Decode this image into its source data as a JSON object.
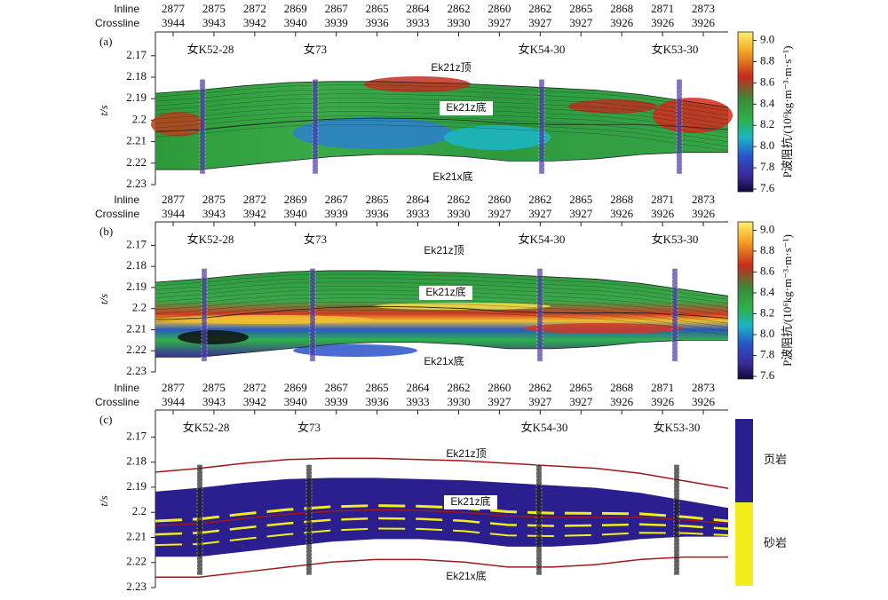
{
  "chart_data": [
    {
      "type": "section",
      "panel_label": "(a)",
      "inline": {
        "label": "Inline",
        "values": [
          "2877",
          "2875",
          "2872",
          "2869",
          "2867",
          "2865",
          "2864",
          "2862",
          "2860",
          "2862",
          "2865",
          "2868",
          "2871",
          "2873"
        ]
      },
      "crossline": {
        "label": "Crossline",
        "values": [
          "3944",
          "3943",
          "3942",
          "3940",
          "3939",
          "3936",
          "3933",
          "3930",
          "3927",
          "3927",
          "3927",
          "3926",
          "3926",
          "3926"
        ]
      },
      "y_label": "t/s",
      "ylim": [
        2.161,
        2.23
      ],
      "yticks": [
        2.17,
        2.18,
        2.19,
        2.2,
        2.21,
        2.22,
        2.23
      ],
      "invert_y": true,
      "wells": [
        "女K52-28",
        "女73",
        "女K54-30",
        "女K53-30"
      ],
      "horizons": [
        "Ek21z顶",
        "Ek21z底",
        "Ek21x底"
      ],
      "colorbar": {
        "label": "P波阻抗/(10⁶kg·m⁻³·m·s⁻¹)",
        "clim": [
          7.575,
          9.08
        ],
        "ticks": [
          {
            "value": 9,
            "label": "9.0"
          },
          8.8,
          8.6,
          8.4,
          8.2,
          {
            "value": 8,
            "label": "8.0"
          },
          7.8,
          7.6
        ]
      }
    },
    {
      "type": "section",
      "panel_label": "(b)",
      "inline": {
        "label": "Inline",
        "values": [
          "2877",
          "2875",
          "2872",
          "2869",
          "2867",
          "2865",
          "2864",
          "2862",
          "2860",
          "2862",
          "2865",
          "2868",
          "2871",
          "2873"
        ]
      },
      "crossline": {
        "label": "Crossline",
        "values": [
          "3944",
          "3943",
          "3942",
          "3940",
          "3939",
          "3936",
          "3933",
          "3930",
          "3927",
          "3927",
          "3927",
          "3926",
          "3926",
          "3926"
        ]
      },
      "y_label": "t/s",
      "ylim": [
        2.161,
        2.23
      ],
      "yticks": [
        2.17,
        2.18,
        2.19,
        2.2,
        2.21,
        2.22,
        2.23
      ],
      "invert_y": true,
      "wells": [
        "女K52-28",
        "女73",
        "女K54-30",
        "女K53-30"
      ],
      "horizons": [
        "Ek21z顶",
        "Ek21z底",
        "Ek21x底"
      ],
      "colorbar": {
        "label": "P波阻抗/(10⁶kg·m⁻³·m·s⁻¹)",
        "clim": [
          7.575,
          9.08
        ],
        "ticks": [
          {
            "value": 9,
            "label": "9.0"
          },
          8.8,
          8.6,
          8.4,
          8.2,
          {
            "value": 8,
            "label": "8.0"
          },
          7.8,
          7.6
        ]
      }
    },
    {
      "type": "section",
      "panel_label": "(c)",
      "inline": {
        "label": "Inline",
        "values": [
          "2877",
          "2875",
          "2872",
          "2869",
          "2867",
          "2865",
          "2864",
          "2862",
          "2860",
          "2862",
          "2865",
          "2868",
          "2871",
          "2873"
        ]
      },
      "crossline": {
        "label": "Crossline",
        "values": [
          "3944",
          "3943",
          "3942",
          "3940",
          "3939",
          "3936",
          "3933",
          "3930",
          "3927",
          "3927",
          "3927",
          "3926",
          "3926",
          "3926"
        ]
      },
      "y_label": "t/s",
      "ylim": [
        2.161,
        2.23
      ],
      "yticks": [
        2.17,
        2.18,
        2.19,
        2.2,
        2.21,
        2.22,
        2.23
      ],
      "invert_y": true,
      "wells": [
        "女K52-28",
        "女73",
        "女K54-30",
        "女K53-30"
      ],
      "horizons": [
        "Ek21z顶",
        "Ek21z底",
        "Ek21x底"
      ],
      "legend": [
        {
          "name": "页岩",
          "color": "#2b1f8f"
        },
        {
          "name": "砂岩",
          "color": "#f2ee1c"
        }
      ]
    }
  ]
}
